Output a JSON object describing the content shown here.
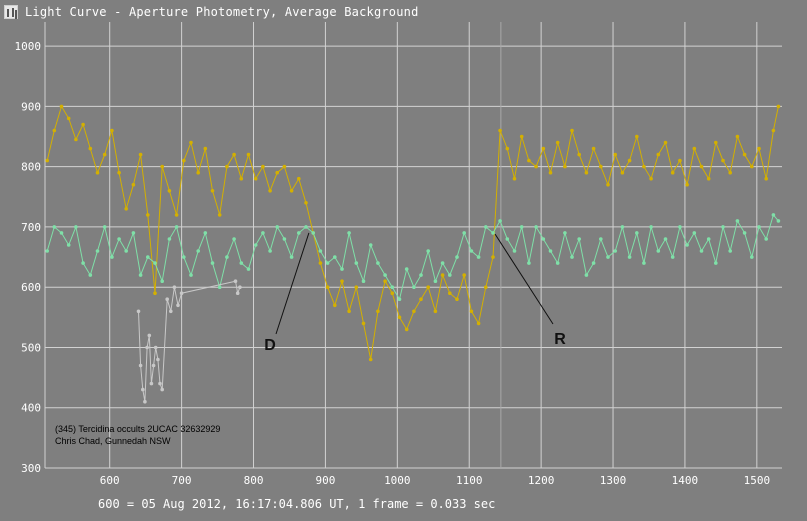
{
  "window": {
    "title": "Light Curve - Aperture Photometry, Average Background"
  },
  "footer": "600 = 05 Aug 2012, 16:17:04.806 UT, 1 frame = 0.033 sec",
  "colors": {
    "background": "#7f7f7f",
    "grid": "#d2d2d2",
    "series_target": "#d4b000",
    "series_comparison": "#7fe0a8",
    "series_gray": "#c8c8c8"
  },
  "chart_data": {
    "type": "line",
    "xlim": [
      510,
      1535
    ],
    "ylim": [
      300,
      1040
    ],
    "xticks": [
      600,
      700,
      800,
      900,
      1000,
      1100,
      1200,
      1300,
      1400,
      1500
    ],
    "yticks": [
      300,
      400,
      500,
      600,
      700,
      800,
      900,
      1000
    ],
    "grid": true,
    "series": [
      {
        "color": "#d4b000",
        "x": [
          513,
          523,
          533,
          543,
          553,
          563,
          573,
          583,
          593,
          603,
          613,
          623,
          633,
          643,
          653,
          663,
          673,
          683,
          693,
          703,
          713,
          723,
          733,
          743,
          753,
          763,
          773,
          783,
          793,
          803,
          813,
          823,
          833,
          843,
          853,
          863,
          873,
          883,
          893,
          903,
          913,
          923,
          933,
          943,
          953,
          963,
          973,
          983,
          993,
          1003,
          1013,
          1023,
          1033,
          1043,
          1053,
          1063,
          1073,
          1083,
          1093,
          1103,
          1113,
          1123,
          1133,
          1143,
          1153,
          1163,
          1173,
          1183,
          1193,
          1203,
          1213,
          1223,
          1233,
          1243,
          1253,
          1263,
          1273,
          1283,
          1293,
          1303,
          1313,
          1323,
          1333,
          1343,
          1353,
          1363,
          1373,
          1383,
          1393,
          1403,
          1413,
          1423,
          1433,
          1443,
          1453,
          1463,
          1473,
          1483,
          1493,
          1503,
          1513,
          1523,
          1530
        ],
        "y": [
          810,
          860,
          900,
          880,
          845,
          870,
          830,
          790,
          820,
          860,
          790,
          730,
          770,
          820,
          720,
          590,
          800,
          760,
          720,
          810,
          840,
          790,
          830,
          760,
          720,
          800,
          820,
          780,
          820,
          780,
          800,
          760,
          790,
          800,
          760,
          780,
          740,
          690,
          640,
          600,
          570,
          610,
          560,
          600,
          540,
          480,
          560,
          610,
          590,
          550,
          530,
          560,
          580,
          600,
          560,
          620,
          590,
          580,
          620,
          560,
          540,
          600,
          650,
          860,
          830,
          780,
          850,
          810,
          800,
          830,
          790,
          840,
          800,
          860,
          820,
          790,
          830,
          800,
          770,
          820,
          790,
          810,
          850,
          800,
          780,
          820,
          840,
          790,
          810,
          770,
          830,
          800,
          780,
          840,
          810,
          790,
          850,
          820,
          800,
          830,
          780,
          860,
          900
        ]
      },
      {
        "color": "#7fe0a8",
        "x": [
          513,
          523,
          533,
          543,
          553,
          563,
          573,
          583,
          593,
          603,
          613,
          623,
          633,
          643,
          653,
          663,
          673,
          683,
          693,
          703,
          713,
          723,
          733,
          743,
          753,
          763,
          773,
          783,
          793,
          803,
          813,
          823,
          833,
          843,
          853,
          863,
          873,
          883,
          893,
          903,
          913,
          923,
          933,
          943,
          953,
          963,
          973,
          983,
          993,
          1003,
          1013,
          1023,
          1033,
          1043,
          1053,
          1063,
          1073,
          1083,
          1093,
          1103,
          1113,
          1123,
          1133,
          1143,
          1153,
          1163,
          1173,
          1183,
          1193,
          1203,
          1213,
          1223,
          1233,
          1243,
          1253,
          1263,
          1273,
          1283,
          1293,
          1303,
          1313,
          1323,
          1333,
          1343,
          1353,
          1363,
          1373,
          1383,
          1393,
          1403,
          1413,
          1423,
          1433,
          1443,
          1453,
          1463,
          1473,
          1483,
          1493,
          1503,
          1513,
          1523,
          1530
        ],
        "y": [
          660,
          700,
          690,
          670,
          700,
          640,
          620,
          660,
          700,
          650,
          680,
          660,
          690,
          620,
          650,
          640,
          610,
          680,
          700,
          650,
          620,
          660,
          690,
          640,
          600,
          650,
          680,
          640,
          630,
          670,
          690,
          660,
          700,
          680,
          650,
          690,
          700,
          690,
          660,
          640,
          650,
          630,
          690,
          640,
          610,
          670,
          640,
          620,
          600,
          580,
          630,
          600,
          620,
          660,
          610,
          640,
          620,
          650,
          690,
          660,
          650,
          700,
          690,
          710,
          680,
          660,
          700,
          640,
          700,
          680,
          660,
          640,
          690,
          650,
          680,
          620,
          640,
          680,
          650,
          660,
          700,
          650,
          690,
          640,
          700,
          660,
          680,
          650,
          700,
          670,
          690,
          660,
          680,
          640,
          700,
          660,
          710,
          690,
          650,
          700,
          680,
          720,
          710
        ]
      },
      {
        "color": "#c8c8c8",
        "x": [
          640,
          643,
          646,
          649,
          652,
          655,
          658,
          661,
          664,
          667,
          670,
          673,
          680,
          685,
          690,
          695,
          700,
          775,
          778,
          781
        ],
        "y": [
          560,
          470,
          430,
          410,
          500,
          520,
          440,
          470,
          500,
          480,
          440,
          430,
          580,
          560,
          600,
          570,
          590,
          610,
          590,
          600
        ]
      }
    ],
    "annotations": [
      {
        "label": "D",
        "points_to_x": 877,
        "points_to_y": 690
      },
      {
        "label": "R",
        "points_to_x": 1136,
        "points_to_y": 688
      }
    ],
    "caption_lines": [
      "(345) Tercidina occults 2UCAC 32632929",
      "Chris Chad, Gunnedah NSW"
    ],
    "event_marker_x": 1144
  }
}
